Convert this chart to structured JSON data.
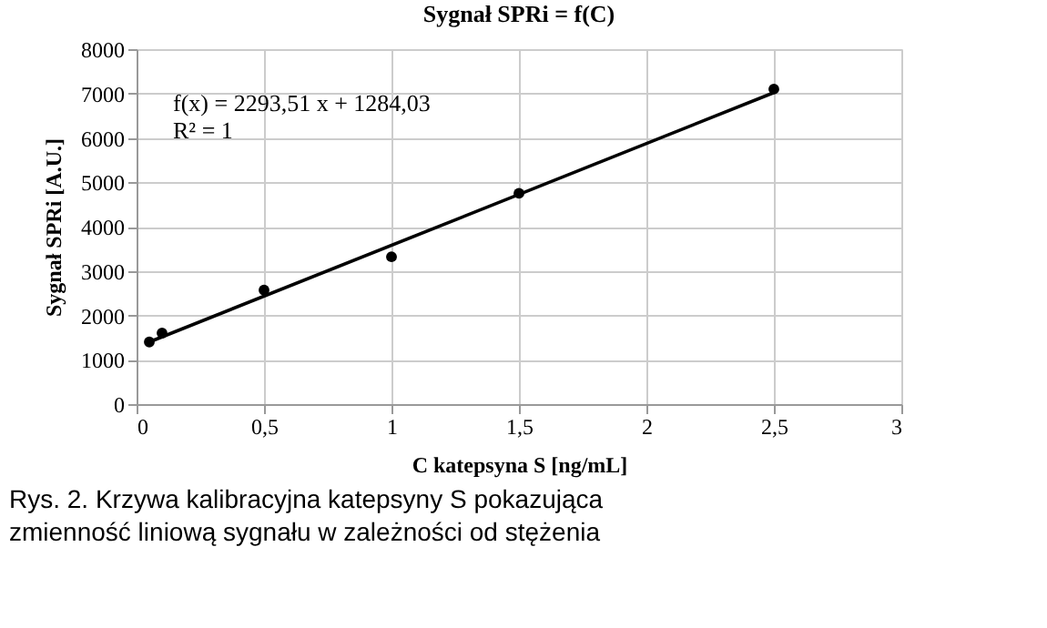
{
  "chart_data": {
    "type": "scatter",
    "title": "Sygnał SPRi = f(C)",
    "xlabel": "C katepsyna S [ng/mL]",
    "ylabel": "Sygnał SPRi [A.U.]",
    "series": [
      {
        "color": "#000000",
        "marker": "circle",
        "x": [
          0.05,
          0.1,
          0.5,
          1,
          1.5,
          2.5
        ],
        "values": [
          1400,
          1600,
          2570,
          3320,
          4750,
          7100
        ]
      },
      {
        "type": "line",
        "color": "#000000",
        "marker": "none",
        "line_style": "solid",
        "x": [
          0.05,
          2.5
        ],
        "values": [
          1400,
          7020
        ]
      }
    ],
    "xlim": [
      0,
      3
    ],
    "xticks": [
      0,
      {
        "value": 0.5,
        "label": "0,5"
      },
      1,
      {
        "value": 1.5,
        "label": "1,5"
      },
      2,
      {
        "value": 2.5,
        "label": "2,5"
      },
      3
    ],
    "ylim": [
      0,
      8000
    ],
    "yticks": [
      0,
      1000,
      2000,
      3000,
      4000,
      5000,
      6000,
      7000,
      8000
    ],
    "grid": true,
    "annotations": [
      "f(x) = 2293,51 x + 1284,03",
      "R² = 1",
      "Rys. 2. Krzywa kalibracyjna katepsyny S pokazująca zmienność liniową sygnału w zależności od stężenia"
    ]
  }
}
